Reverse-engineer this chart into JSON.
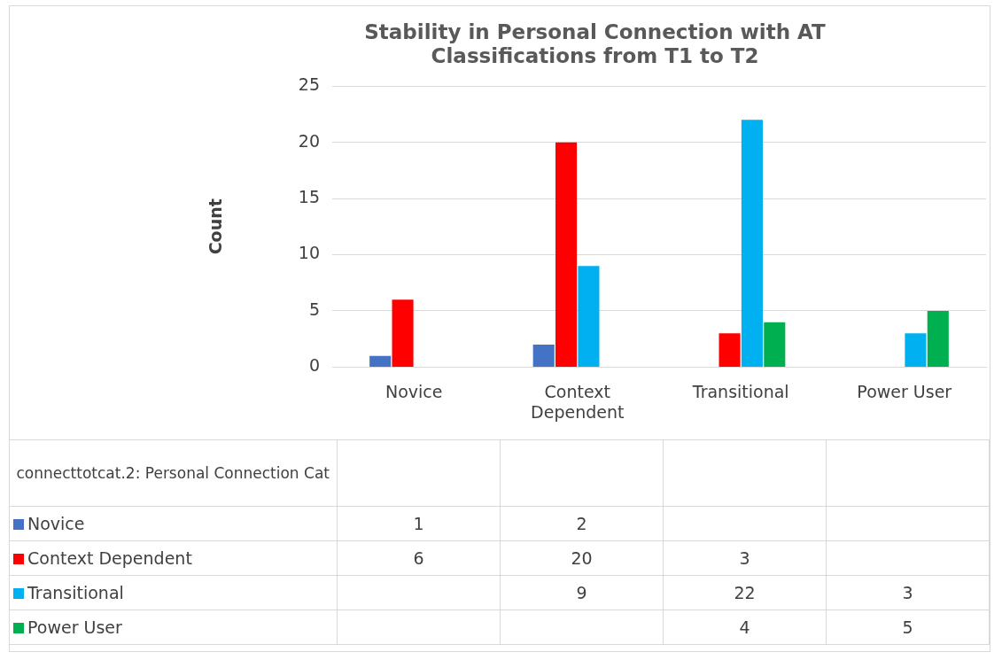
{
  "chart_data": {
    "type": "bar",
    "title": "Stability in Personal Connection with AT Classifications from T1 to T2",
    "ylabel": "Count",
    "categories": [
      "Novice",
      "Context Dependent",
      "Transitional",
      "Power User"
    ],
    "series": [
      {
        "name": "Novice",
        "color": "#4472c4",
        "values": [
          1,
          2,
          null,
          null
        ]
      },
      {
        "name": "Context Dependent",
        "color": "#ff0000",
        "values": [
          6,
          20,
          3,
          null
        ]
      },
      {
        "name": "Transitional",
        "color": "#00b0f0",
        "values": [
          null,
          9,
          22,
          3
        ]
      },
      {
        "name": "Power User",
        "color": "#00b050",
        "values": [
          null,
          null,
          4,
          5
        ]
      }
    ],
    "legend_title": "connecttotcat.2: Personal Connection Cat",
    "legend": "bottom",
    "data_labels": true,
    "ylim": [
      0,
      25
    ],
    "yticks": [
      0,
      5,
      10,
      15,
      20,
      25
    ],
    "grid": "y"
  }
}
